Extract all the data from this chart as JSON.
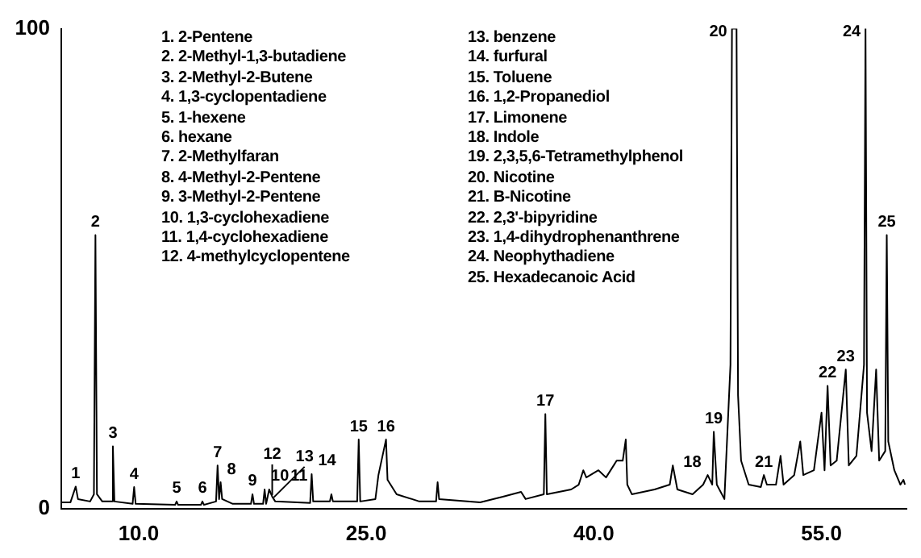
{
  "chart_data": {
    "type": "line",
    "x": [
      4.9,
      5.5,
      5.85,
      6.0,
      6.8,
      7.05,
      7.15,
      7.25,
      7.6,
      8.25,
      8.3,
      8.4,
      9.6,
      9.7,
      9.8,
      12.4,
      12.5,
      12.6,
      14.1,
      14.2,
      14.3,
      15.1,
      15.2,
      15.3,
      15.4,
      15.5,
      16.2,
      17.4,
      17.5,
      17.6,
      18.2,
      18.3,
      18.4,
      18.6,
      18.8,
      18.9,
      19.0,
      21.3,
      21.4,
      21.5,
      22.6,
      22.7,
      22.8,
      24.4,
      24.5,
      24.6,
      25.6,
      25.8,
      26.3,
      26.4,
      27.0,
      28.5,
      29.6,
      29.7,
      29.8,
      32.5,
      34.0,
      35.2,
      35.5,
      36.7,
      36.8,
      36.9,
      38.5,
      39.0,
      39.3,
      39.5,
      40.3,
      40.8,
      41.5,
      41.9,
      42.1,
      42.2,
      42.5,
      44.0,
      45.0,
      45.2,
      45.5,
      46.5,
      47.2,
      47.5,
      47.8,
      47.9,
      48.1,
      48.6,
      49.0,
      49.1,
      49.4,
      49.5,
      49.7,
      50.2,
      51.0,
      51.2,
      51.4,
      52.0,
      52.3,
      52.5,
      53.2,
      53.6,
      53.8,
      54.5,
      55.0,
      55.2,
      55.4,
      55.6,
      56.0,
      56.6,
      56.8,
      57.3,
      57.8,
      57.9,
      58.0,
      58.3,
      58.6,
      58.8,
      59.2,
      59.3,
      59.4,
      59.8,
      60.2,
      60.4,
      60.5
    ],
    "series": [
      {
        "color": "#000000",
        "values": [
          1.3,
          1.3,
          4.6,
          2,
          1.5,
          3,
          57,
          3,
          1.5,
          1.5,
          13,
          1.5,
          1,
          4.5,
          1,
          0.8,
          1.5,
          0.8,
          0.8,
          1.5,
          0.8,
          1.5,
          9,
          2,
          5.5,
          2,
          1,
          1,
          3,
          1,
          1,
          4,
          1,
          4,
          2.5,
          2,
          1.5,
          1.2,
          7.2,
          1.5,
          1.5,
          3,
          1.5,
          1.5,
          14.4,
          1.5,
          2,
          7,
          14.4,
          6,
          3,
          1.5,
          1.5,
          5.5,
          2,
          1.3,
          2.5,
          3.5,
          2,
          3,
          19.7,
          3,
          4,
          5,
          8,
          6.5,
          8,
          6.5,
          10,
          10,
          14.4,
          5,
          3,
          4,
          5,
          9,
          4,
          3,
          5,
          7,
          5,
          16,
          5,
          2,
          30,
          100,
          100,
          23.6,
          10,
          5,
          4.5,
          7,
          5,
          5,
          11,
          5,
          7,
          14,
          7,
          8,
          20,
          8,
          25.6,
          9,
          10,
          29,
          9,
          11,
          30,
          100,
          20,
          12,
          29,
          10,
          12,
          57,
          14,
          8,
          5,
          6,
          5
        ]
      }
    ],
    "xlim": [
      4.9,
      60.6
    ],
    "ylim": [
      0,
      100
    ],
    "xticks": [
      {
        "value": 10,
        "label": "10.0"
      },
      {
        "value": 25,
        "label": "25.0"
      },
      {
        "value": 40,
        "label": "40.0"
      },
      {
        "value": 55,
        "label": "55.0"
      }
    ],
    "yticks": [
      0,
      100
    ],
    "grid": false,
    "legend": false,
    "annotations": [
      "1. 2-Pentene",
      "2. 2-Methyl-1,3-butadiene",
      "3. 2-Methyl-2-Butene",
      "4. 1,3-cyclopentadiene",
      "5. 1-hexene",
      "6. hexane",
      "7. 2-Methylfaran",
      "8. 4-Methyl-2-Pentene",
      "9. 3-Methyl-2-Pentene",
      "10. 1,3-cyclohexadiene",
      "11. 1,4-cyclohexadiene",
      "12. 4-methylcyclopentene",
      "13. benzene",
      "14. furfural",
      "15. Toluene",
      "16. 1,2-Propanediol",
      "17. Limonene",
      "18. Indole",
      "19. 2,3,5,6-Tetramethylphenol",
      "20. Nicotine",
      "21. B-Nicotine",
      "22. 2,3'-bipyridine",
      "23. 1,4-dihydrophenanthrene",
      "24. Neophythadiene",
      "25. Hexadecanoic Acid",
      {
        "text": "1",
        "x": 5.85,
        "y": 4.6
      },
      {
        "text": "2",
        "x": 7.15,
        "y": 57
      },
      {
        "text": "3",
        "x": 8.3,
        "y": 13
      },
      {
        "text": "4",
        "x": 9.7,
        "y": 4.5
      },
      {
        "text": "5",
        "x": 12.5,
        "y": 1.5
      },
      {
        "text": "6",
        "x": 14.2,
        "y": 1.5
      },
      {
        "text": "7",
        "x": 15.2,
        "y": 9
      },
      {
        "text": "8",
        "x": 15.4,
        "y": 5.5
      },
      {
        "text": "9",
        "x": 17.5,
        "y": 3
      },
      {
        "text": "10",
        "x": 18.3,
        "y": 4
      },
      {
        "text": "11",
        "x": 18.6,
        "y": 4
      },
      {
        "text": "12",
        "x": 18.8,
        "y": 2.5
      },
      {
        "text": "13",
        "x": 18.9,
        "y": 2
      },
      {
        "text": "14",
        "x": 21.4,
        "y": 7.2
      },
      {
        "text": "15",
        "x": 24.5,
        "y": 14.4
      },
      {
        "text": "16",
        "x": 26.3,
        "y": 14.4
      },
      {
        "text": "17",
        "x": 36.8,
        "y": 19.7
      },
      {
        "text": "18",
        "x": 47.5,
        "y": 7
      },
      {
        "text": "19",
        "x": 47.9,
        "y": 16
      },
      {
        "text": "20",
        "x": 49.1,
        "y": 100
      },
      {
        "text": "21",
        "x": 51.2,
        "y": 7
      },
      {
        "text": "22",
        "x": 55.4,
        "y": 25.6
      },
      {
        "text": "23",
        "x": 56.6,
        "y": 29
      },
      {
        "text": "24",
        "x": 57.9,
        "y": 100
      },
      {
        "text": "25",
        "x": 59.3,
        "y": 57
      }
    ]
  }
}
